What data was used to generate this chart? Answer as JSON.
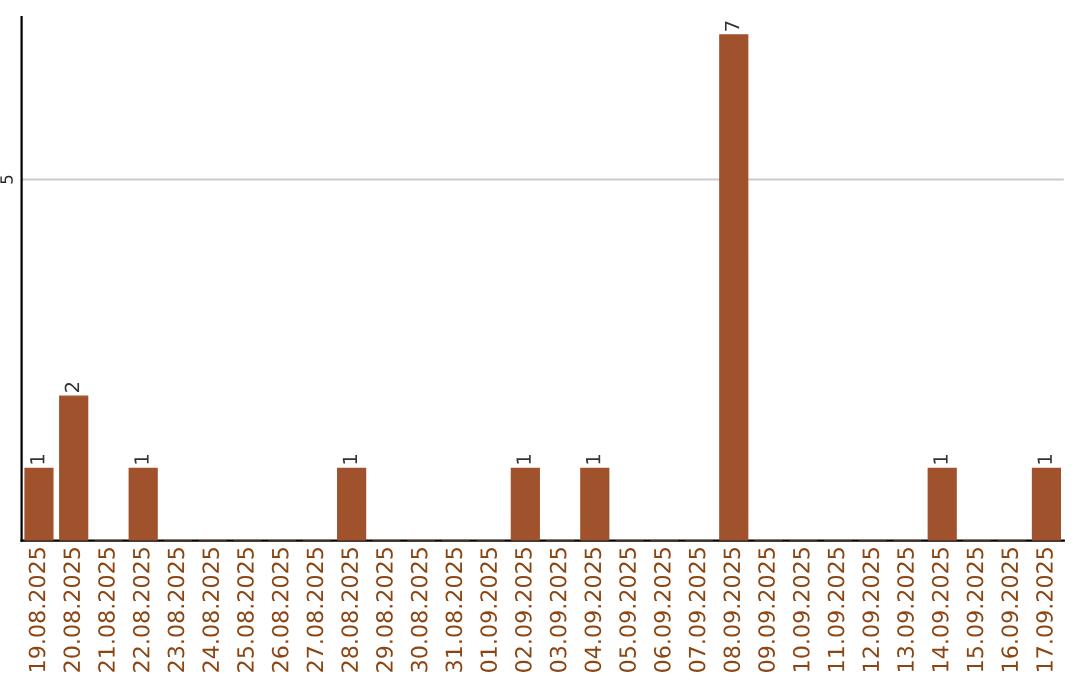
{
  "chart_data": {
    "type": "bar",
    "categories": [
      "19.08.2025",
      "20.08.2025",
      "21.08.2025",
      "22.08.2025",
      "23.08.2025",
      "24.08.2025",
      "25.08.2025",
      "26.08.2025",
      "27.08.2025",
      "28.08.2025",
      "29.08.2025",
      "30.08.2025",
      "31.08.2025",
      "01.09.2025",
      "02.09.2025",
      "03.09.2025",
      "04.09.2025",
      "05.09.2025",
      "06.09.2025",
      "07.09.2025",
      "08.09.2025",
      "09.09.2025",
      "10.09.2025",
      "11.09.2025",
      "12.09.2025",
      "13.09.2025",
      "14.09.2025",
      "15.09.2025",
      "16.09.2025",
      "17.09.2025"
    ],
    "values": [
      1,
      2,
      0,
      1,
      0,
      0,
      0,
      0,
      0,
      1,
      0,
      0,
      0,
      0,
      1,
      0,
      1,
      0,
      0,
      0,
      7,
      0,
      0,
      0,
      0,
      0,
      1,
      0,
      0,
      1
    ],
    "value_labels": [
      "1",
      "2",
      null,
      "1",
      null,
      null,
      null,
      null,
      null,
      "1",
      null,
      null,
      null,
      null,
      "1",
      null,
      "1",
      null,
      null,
      null,
      "7",
      null,
      null,
      null,
      null,
      null,
      "1",
      null,
      null,
      "1"
    ],
    "color": "#a0522d",
    "ylim": [
      0,
      7.25
    ],
    "yticks": [
      5
    ],
    "grid": "y"
  }
}
